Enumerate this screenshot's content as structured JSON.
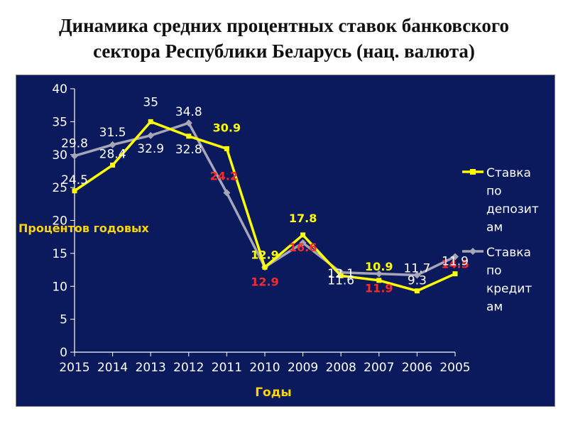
{
  "title_line1": "Динамика средних процентных ставок банковского",
  "title_line2": "сектора Республики Беларусь (нац. валюта)",
  "colors": {
    "background": "#0b1a5c",
    "deposit": "#ffff00",
    "credit": "#a6a6b8",
    "deposit_label": "#ffff00",
    "credit_label": "#ff2a2a",
    "axis_title": "#ffd400",
    "text": "#ffffff"
  },
  "chart_data": {
    "type": "line",
    "categories": [
      "2015",
      "2014",
      "2013",
      "2012",
      "2011",
      "2010",
      "2009",
      "2008",
      "2007",
      "2006",
      "2005"
    ],
    "xlabel": "Годы",
    "ylabel": "Процентов годовых",
    "ylim": [
      0,
      40
    ],
    "yticks": [
      "0",
      "5",
      "10",
      "15",
      "20",
      "25",
      "30",
      "35",
      "40"
    ],
    "grid": false,
    "legend_position": "right",
    "series": [
      {
        "name": "Ставка по депозитам",
        "legend_lines": [
          "Ставка",
          "по",
          "депозит",
          "ам"
        ],
        "values": [
          24.5,
          28.4,
          35,
          32.8,
          30.9,
          12.9,
          17.8,
          11.6,
          10.9,
          9.3,
          11.9
        ],
        "labels": [
          "24.5",
          "28.4",
          "35",
          "32.8",
          "30.9",
          "12.9",
          "17.8",
          "11.6",
          "10.9",
          "9.3",
          "11.9"
        ]
      },
      {
        "name": "Ставка по кредитам",
        "legend_lines": [
          "Ставка",
          "по",
          "кредит",
          "ам"
        ],
        "values": [
          29.8,
          31.5,
          32.9,
          34.8,
          24.2,
          12.9,
          16.6,
          12.1,
          11.9,
          11.7,
          14.5
        ],
        "labels": [
          "29.8",
          "31.5",
          "32.9",
          "34.8",
          "24.2",
          "12.9",
          "16.6",
          "12.1",
          "11.9",
          "11.7",
          "14.5"
        ]
      }
    ]
  }
}
